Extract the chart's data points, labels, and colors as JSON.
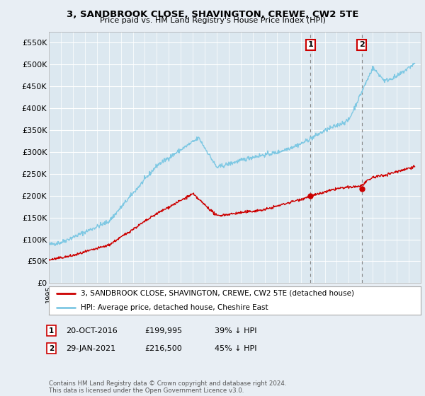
{
  "title": "3, SANDBROOK CLOSE, SHAVINGTON, CREWE, CW2 5TE",
  "subtitle": "Price paid vs. HM Land Registry's House Price Index (HPI)",
  "hpi_color": "#7ec8e3",
  "price_color": "#cc0000",
  "bg_color": "#e8eef4",
  "plot_bg": "#dce8f0",
  "ylim": [
    0,
    575000
  ],
  "yticks": [
    0,
    50000,
    100000,
    150000,
    200000,
    250000,
    300000,
    350000,
    400000,
    450000,
    500000,
    550000
  ],
  "sale1_year": 2016.8,
  "sale1_price": 199995,
  "sale2_year": 2021.08,
  "sale2_price": 216500,
  "legend_house": "3, SANDBROOK CLOSE, SHAVINGTON, CREWE, CW2 5TE (detached house)",
  "legend_hpi": "HPI: Average price, detached house, Cheshire East",
  "footnote": "Contains HM Land Registry data © Crown copyright and database right 2024.\nThis data is licensed under the Open Government Licence v3.0.",
  "xmin": 1995,
  "xmax": 2026
}
